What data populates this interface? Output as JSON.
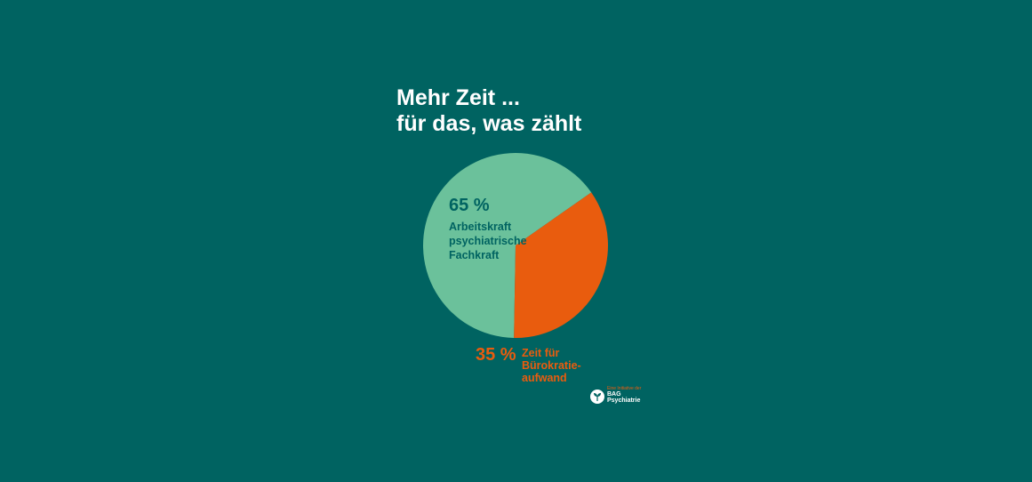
{
  "title": {
    "line1": "Mehr Zeit ...",
    "line2": "für das, was zählt"
  },
  "chart_data": {
    "type": "pie",
    "slices": [
      {
        "value": 65,
        "value_label": "65 %",
        "label_lines": [
          "Arbeitskraft",
          "psychiatrische",
          "Fachkraft"
        ],
        "color": "#6bc19b"
      },
      {
        "value": 35,
        "value_label": "35 %",
        "label_lines": [
          "Zeit für",
          "Bürokratie-",
          "aufwand"
        ],
        "color": "#e95c0e"
      }
    ]
  },
  "logo": {
    "kicker": "Eine Initiative der",
    "line1": "BAG",
    "line2": "Psychiatrie",
    "icon": "leaf-icon"
  },
  "colors": {
    "background": "#006361",
    "title": "#ffffff",
    "dark_label": "#006361",
    "accent": "#e95c0e",
    "slice_main": "#6bc19b"
  }
}
